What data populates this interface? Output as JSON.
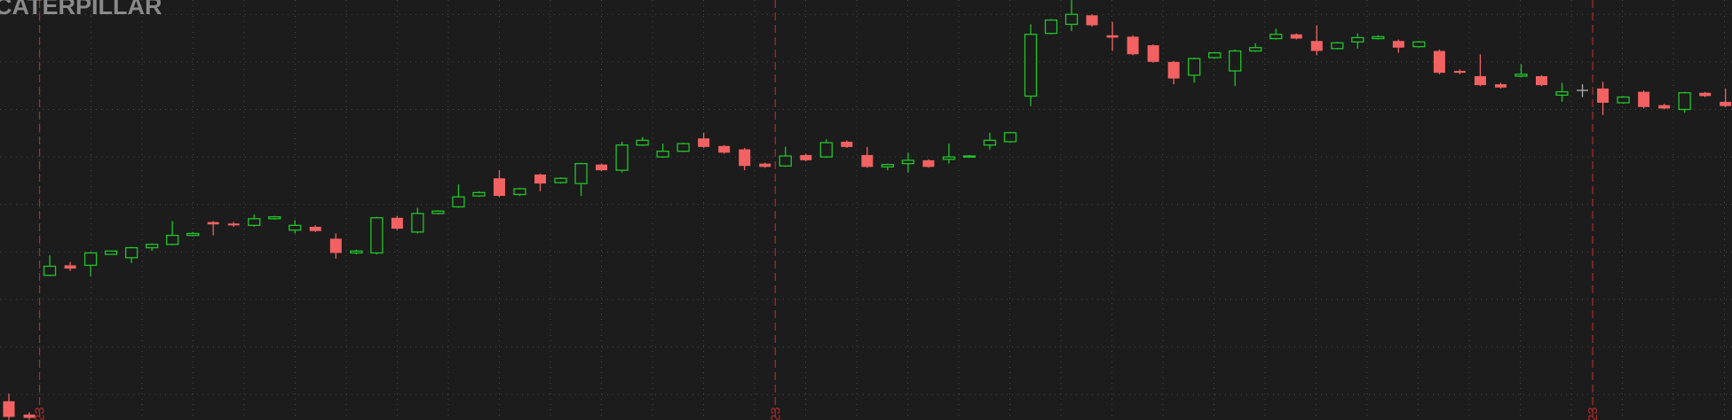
{
  "chart_data": {
    "type": "candlestick",
    "title": "CATERPILLAR",
    "categories": [
      null,
      null,
      "23",
      null,
      null,
      null,
      null,
      null,
      null,
      null,
      null,
      null,
      null,
      null,
      null,
      null,
      null,
      null,
      null,
      null,
      null,
      null,
      null,
      null,
      null,
      null,
      null,
      null,
      null,
      null,
      null,
      null,
      null,
      null,
      null,
      null,
      null,
      null,
      "23",
      null,
      null,
      null,
      null,
      null,
      null,
      null,
      null,
      null,
      null,
      null,
      null,
      null,
      null,
      null,
      null,
      null,
      null,
      null,
      null,
      null,
      null,
      null,
      null,
      null,
      null,
      null,
      null,
      null,
      null,
      null,
      null,
      null,
      null,
      null,
      null,
      null,
      null,
      null,
      "23",
      null,
      null,
      null,
      null,
      null,
      null
    ],
    "open": [
      8.6,
      5.8,
      35.1,
      37.2,
      37.2,
      39.5,
      38.8,
      40.9,
      41.6,
      43.5,
      46.3,
      46.0,
      45.6,
      47.0,
      44.6,
      45.3,
      42.8,
      39.8,
      39.8,
      47.2,
      44.2,
      48.1,
      49.5,
      51.8,
      55.5,
      52.1,
      56.3,
      54.6,
      54.4,
      58.4,
      57.2,
      62.5,
      60.0,
      61.2,
      63.9,
      62.3,
      61.6,
      58.6,
      58.1,
      60.4,
      60.0,
      63.2,
      60.4,
      57.9,
      58.6,
      59.3,
      59.5,
      60.0,
      62.5,
      63.2,
      72.8,
      86.0,
      87.9,
      89.8,
      85.6,
      85.3,
      83.5,
      80.0,
      77.2,
      80.9,
      78.1,
      82.3,
      84.9,
      85.8,
      84.4,
      82.8,
      84.2,
      84.9,
      84.4,
      83.2,
      82.3,
      78.1,
      77.0,
      75.3,
      77.0,
      77.0,
      73.0,
      74.0,
      74.4,
      71.4,
      73.7,
      70.9,
      70.0,
      73.5,
      71.6
    ],
    "high": [
      10.2,
      6.3,
      39.3,
      37.9,
      40.0,
      40.2,
      41.1,
      41.8,
      46.5,
      44.2,
      46.5,
      46.3,
      47.9,
      47.6,
      46.7,
      45.6,
      43.9,
      40.5,
      47.4,
      47.6,
      49.3,
      48.8,
      54.2,
      52.8,
      57.2,
      53.5,
      56.5,
      55.7,
      58.8,
      58.6,
      63.2,
      64.2,
      62.8,
      63.0,
      65.1,
      62.5,
      61.9,
      58.8,
      62.1,
      60.7,
      63.7,
      63.5,
      62.1,
      58.6,
      60.9,
      59.5,
      62.8,
      60.4,
      65.1,
      65.3,
      87.9,
      89.0,
      93.0,
      90.0,
      88.4,
      85.6,
      83.7,
      80.2,
      80.9,
      82.1,
      82.6,
      83.9,
      87.0,
      86.0,
      87.7,
      84.2,
      86.0,
      85.6,
      84.7,
      84.4,
      82.6,
      78.4,
      81.6,
      75.6,
      79.5,
      77.2,
      75.6,
      75.3,
      75.8,
      72.8,
      74.0,
      71.2,
      73.7,
      73.7,
      74.4
    ],
    "low": [
      4.7,
      4.7,
      34.9,
      36.0,
      34.9,
      39.5,
      37.7,
      40.2,
      41.4,
      43.3,
      43.5,
      45.3,
      45.3,
      46.8,
      43.9,
      44.2,
      38.6,
      39.5,
      39.5,
      44.6,
      43.9,
      47.9,
      49.3,
      51.6,
      51.6,
      51.8,
      52.8,
      54.4,
      51.8,
      57.0,
      56.7,
      62.3,
      59.8,
      61.0,
      61.9,
      60.7,
      57.2,
      57.7,
      57.9,
      59.1,
      59.8,
      61.9,
      57.7,
      57.2,
      56.7,
      57.7,
      58.6,
      59.8,
      61.6,
      63.0,
      70.7,
      85.8,
      86.5,
      87.4,
      82.3,
      81.4,
      79.8,
      75.3,
      75.6,
      80.7,
      74.9,
      82.1,
      84.7,
      84.7,
      81.4,
      82.6,
      82.8,
      84.7,
      81.9,
      83.0,
      77.4,
      77.4,
      74.9,
      74.4,
      76.7,
      74.9,
      71.6,
      72.6,
      68.8,
      71.2,
      70.2,
      70.0,
      69.3,
      72.6,
      70.5
    ],
    "close": [
      5.3,
      5.1,
      37.0,
      36.5,
      39.8,
      40.2,
      40.9,
      41.6,
      43.5,
      43.9,
      45.8,
      45.6,
      47.0,
      47.4,
      45.6,
      44.4,
      39.8,
      40.2,
      47.2,
      44.9,
      48.1,
      48.6,
      51.6,
      52.5,
      51.8,
      53.3,
      54.4,
      55.5,
      58.6,
      57.2,
      62.5,
      63.5,
      61.2,
      62.8,
      62.1,
      60.9,
      58.1,
      57.9,
      60.2,
      59.3,
      63.0,
      62.1,
      57.9,
      58.4,
      59.3,
      57.9,
      60.0,
      60.2,
      63.5,
      65.1,
      85.8,
      88.8,
      90.0,
      87.7,
      85.1,
      81.6,
      80.0,
      76.5,
      80.7,
      81.9,
      82.3,
      83.0,
      85.8,
      84.9,
      82.3,
      84.0,
      85.1,
      85.3,
      83.0,
      84.2,
      77.7,
      77.7,
      75.1,
      74.6,
      77.4,
      75.1,
      73.7,
      74.0,
      71.4,
      72.6,
      70.5,
      70.2,
      73.5,
      72.8,
      70.7
    ],
    "colors": {
      "up": "#22c42a",
      "down": "#f26262",
      "flat": "#b0b0b0",
      "separator": "#b02a2a"
    },
    "ylim": [
      4.65,
      93.02
    ],
    "yticks": [
      10,
      20,
      30,
      40,
      50,
      60,
      70,
      80,
      90
    ],
    "grid": true
  }
}
